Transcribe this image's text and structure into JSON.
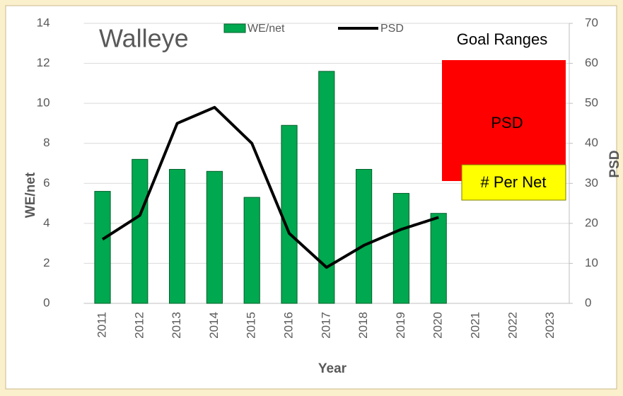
{
  "chart_data": {
    "type": "bar_line",
    "title": "Walleye",
    "x_label": "Year",
    "y_label": "WE/net",
    "y2_label": "PSD",
    "categories": [
      "2011",
      "2012",
      "2013",
      "2014",
      "2015",
      "2016",
      "2017",
      "2018",
      "2019",
      "2020",
      "2021",
      "2022",
      "2023"
    ],
    "series": [
      {
        "name": "WE/net",
        "type": "bar",
        "color": "#00a84f",
        "values": [
          5.6,
          7.2,
          6.7,
          6.6,
          5.3,
          8.9,
          11.6,
          6.7,
          5.5,
          4.5,
          null,
          null,
          null
        ]
      },
      {
        "name": "PSD",
        "type": "line",
        "axis": "y2",
        "color": "#000000",
        "values": [
          16,
          22,
          45,
          49,
          40,
          17.5,
          9,
          14.5,
          18.5,
          21.5,
          null,
          null,
          null
        ]
      }
    ],
    "ylim": [
      0,
      14
    ],
    "yticks": [
      0,
      2,
      4,
      6,
      8,
      10,
      12,
      14
    ],
    "y2lim": [
      0,
      70
    ],
    "y2ticks": [
      0,
      10,
      20,
      30,
      40,
      50,
      60,
      70
    ],
    "grid": true,
    "annotations": {
      "goal_title": "Goal Ranges",
      "psd_box": "PSD",
      "net_box": "# Per Net"
    }
  }
}
